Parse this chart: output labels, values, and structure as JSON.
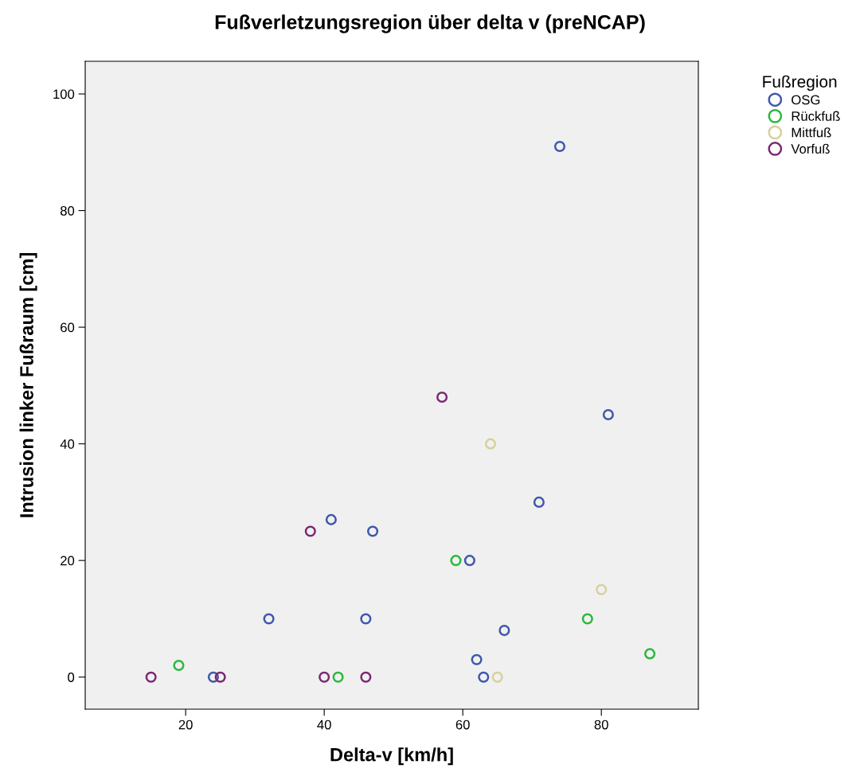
{
  "chart_data": {
    "type": "scatter",
    "title": "Fußverletzungsregion über delta v (preNCAP)",
    "xlabel": "Delta-v [km/h]",
    "ylabel": "Intrusion linker Fußraum [cm]",
    "legend_title": "Fußregion",
    "legend": "top right",
    "marker": "circle",
    "grid": false,
    "xlim": [
      5.5,
      94
    ],
    "xticks": [
      20,
      40,
      60,
      80
    ],
    "ylim": [
      -5.5,
      105.6
    ],
    "yticks": [
      0,
      20,
      40,
      60,
      80,
      100
    ],
    "series": [
      {
        "name": "OSG",
        "color": "#3e58ac",
        "x": [
          74,
          81,
          71,
          41,
          47,
          61,
          32,
          46,
          66,
          62,
          24,
          63
        ],
        "values": [
          91,
          45,
          30,
          27,
          25,
          20,
          10,
          10,
          8,
          3,
          0,
          0
        ]
      },
      {
        "name": "Rückfuß",
        "color": "#2bb83e",
        "x": [
          19,
          42,
          59,
          78,
          87
        ],
        "values": [
          2,
          0,
          20,
          10,
          4
        ]
      },
      {
        "name": "Mittfuß",
        "color": "#d7d09c",
        "x": [
          64,
          80,
          65
        ],
        "values": [
          40,
          15,
          0
        ]
      },
      {
        "name": "Vorfuß",
        "color": "#7d2873",
        "x": [
          57,
          38,
          15,
          25,
          40,
          46
        ],
        "values": [
          48,
          25,
          0,
          0,
          0,
          0
        ]
      }
    ]
  }
}
